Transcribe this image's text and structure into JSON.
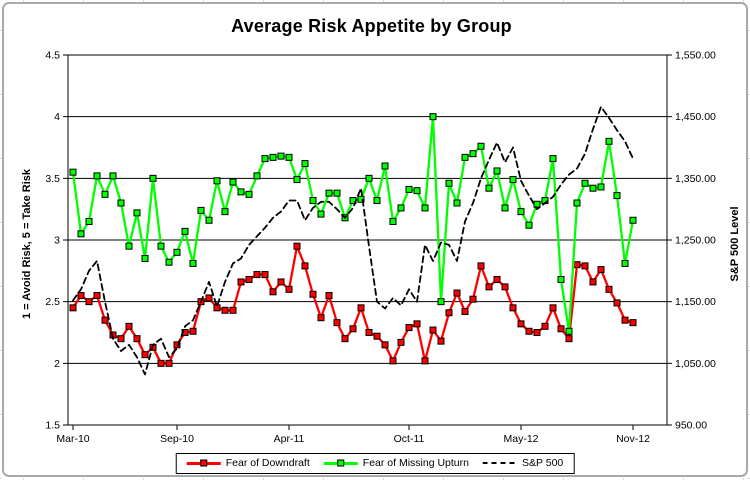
{
  "window": {
    "background": "#ffffff",
    "frame_border_color": "#a9a9a9",
    "spreadsheet_gridline_color": "#d6d6d6"
  },
  "chart_data": {
    "type": "line",
    "title": "Average Risk Appetite by Group",
    "grid": "horizontal",
    "legend_position": "bottom",
    "left_axis": {
      "title": "1 = Avoid Risk, 5 = Take Risk",
      "min": 1.5,
      "max": 4.5,
      "ticks": [
        {
          "label": "4.5",
          "value": 4.5
        },
        {
          "label": "4",
          "value": 4.0
        },
        {
          "label": "3.5",
          "value": 3.5
        },
        {
          "label": "3",
          "value": 3.0
        },
        {
          "label": "2.5",
          "value": 2.5
        },
        {
          "label": "2",
          "value": 2.0
        },
        {
          "label": "1.5",
          "value": 1.5
        }
      ]
    },
    "right_axis": {
      "title": "S&P 500 Level",
      "min": 950,
      "max": 1550,
      "ticks": [
        {
          "label": "1,550.00",
          "value": 1550
        },
        {
          "label": "1,450.00",
          "value": 1450
        },
        {
          "label": "1,350.00",
          "value": 1350
        },
        {
          "label": "1,250.00",
          "value": 1250
        },
        {
          "label": "1,150.00",
          "value": 1150
        },
        {
          "label": "1,050.00",
          "value": 1050
        },
        {
          "label": "950.00",
          "value": 950
        }
      ]
    },
    "x_ticks": [
      {
        "label": "Mar-10",
        "index": 0
      },
      {
        "label": "Sep-10",
        "index": 13
      },
      {
        "label": "Apr-11",
        "index": 27
      },
      {
        "label": "Oct-11",
        "index": 42
      },
      {
        "label": "May-12",
        "index": 56
      },
      {
        "label": "Nov-12",
        "index": 70
      }
    ],
    "series": [
      {
        "name": "Fear of Downdraft",
        "color": "#FF0000",
        "marker": "square",
        "dashed": false,
        "axis": "left",
        "values": [
          2.45,
          2.55,
          2.5,
          2.55,
          2.35,
          2.23,
          2.2,
          2.3,
          2.2,
          2.07,
          2.13,
          2.0,
          2.0,
          2.15,
          2.25,
          2.26,
          2.5,
          2.53,
          2.45,
          2.43,
          2.43,
          2.66,
          2.68,
          2.72,
          2.72,
          2.58,
          2.66,
          2.6,
          2.95,
          2.79,
          2.56,
          2.37,
          2.55,
          2.33,
          2.2,
          2.28,
          2.45,
          2.25,
          2.22,
          2.15,
          2.02,
          2.17,
          2.29,
          2.32,
          2.02,
          2.27,
          2.18,
          2.41,
          2.57,
          2.42,
          2.52,
          2.79,
          2.62,
          2.68,
          2.62,
          2.45,
          2.32,
          2.26,
          2.25,
          2.3,
          2.45,
          2.28,
          2.2,
          2.8,
          2.79,
          2.66,
          2.76,
          2.6,
          2.49,
          2.35,
          2.33
        ]
      },
      {
        "name": "Fear of Missing Upturn",
        "color": "#00FF00",
        "marker": "square",
        "dashed": false,
        "axis": "left",
        "values": [
          3.55,
          3.05,
          3.15,
          3.52,
          3.37,
          3.52,
          3.3,
          2.95,
          3.22,
          2.85,
          3.5,
          2.95,
          2.82,
          2.9,
          3.07,
          2.81,
          3.24,
          3.16,
          3.48,
          3.23,
          3.47,
          3.39,
          3.37,
          3.52,
          3.66,
          3.67,
          3.68,
          3.67,
          3.49,
          3.62,
          3.32,
          3.21,
          3.38,
          3.38,
          3.18,
          3.32,
          3.33,
          3.5,
          3.32,
          3.6,
          3.15,
          3.26,
          3.41,
          3.4,
          3.26,
          4.0,
          2.5,
          3.46,
          3.3,
          3.67,
          3.7,
          3.76,
          3.42,
          3.56,
          3.26,
          3.49,
          3.23,
          3.12,
          3.29,
          3.32,
          3.66,
          2.68,
          2.26,
          3.3,
          3.46,
          3.42,
          3.43,
          3.8,
          3.36,
          2.81,
          3.16
        ]
      },
      {
        "name": "S&P 500",
        "color": "#000000",
        "marker": null,
        "dashed": true,
        "axis": "right",
        "values": [
          1152,
          1170,
          1200,
          1216,
          1150,
          1090,
          1070,
          1080,
          1060,
          1032,
          1080,
          1090,
          1060,
          1074,
          1110,
          1120,
          1150,
          1182,
          1142,
          1182,
          1212,
          1220,
          1242,
          1256,
          1270,
          1286,
          1296,
          1314,
          1314,
          1282,
          1302,
          1312,
          1312,
          1300,
          1286,
          1302,
          1334,
          1240,
          1150,
          1139,
          1156,
          1144,
          1170,
          1150,
          1242,
          1216,
          1246,
          1242,
          1216,
          1280,
          1310,
          1350,
          1380,
          1408,
          1376,
          1400,
          1346,
          1322,
          1300,
          1310,
          1320,
          1340,
          1356,
          1366,
          1390,
          1430,
          1466,
          1448,
          1428,
          1410,
          1382
        ]
      }
    ]
  }
}
